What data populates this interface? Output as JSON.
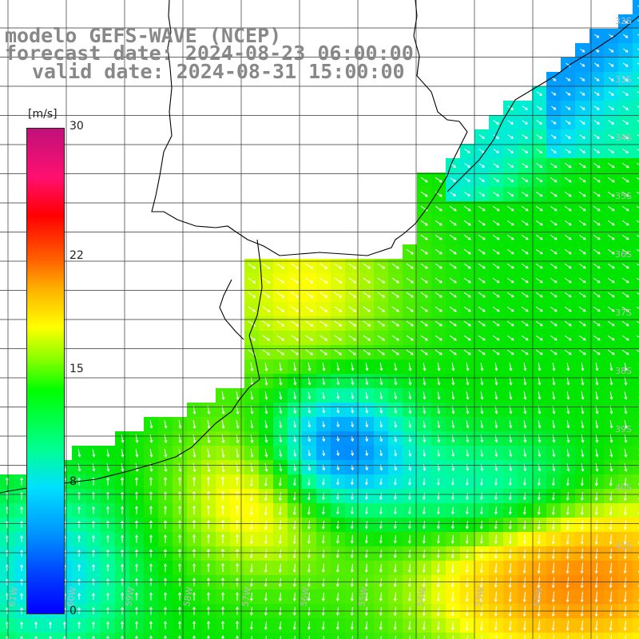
{
  "title": {
    "line1": "modelo GEFS-WAVE (NCEP)",
    "line2": "forecast date: 2024-08-23 06:00:00",
    "line3": "valid date: 2024-08-31 15:00:00"
  },
  "colorbar": {
    "unit": "[m/s]",
    "min": 0,
    "max": 30,
    "ticks": [
      {
        "value": 30,
        "label": "30"
      },
      {
        "value": 22,
        "label": "22"
      },
      {
        "value": 15,
        "label": "15"
      },
      {
        "value": 8,
        "label": "8"
      },
      {
        "value": 0,
        "label": "0"
      }
    ]
  },
  "grid_labels": {
    "latitudes": [
      "32S",
      "33S",
      "34S",
      "35S",
      "36S",
      "37S",
      "38S",
      "39S",
      "40S",
      "41S"
    ],
    "longitudes": [
      "61W",
      "60W",
      "59W",
      "58W",
      "57W",
      "56W",
      "55W",
      "54W",
      "53W",
      "52W"
    ]
  },
  "colors": {
    "land": "#ffffff",
    "coast": "#000000",
    "grid": "#333333",
    "arrows": "#ffffff",
    "title": "#888888"
  }
}
